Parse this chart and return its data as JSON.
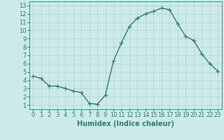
{
  "x": [
    0,
    1,
    2,
    3,
    4,
    5,
    6,
    7,
    8,
    9,
    10,
    11,
    12,
    13,
    14,
    15,
    16,
    17,
    18,
    19,
    20,
    21,
    22,
    23
  ],
  "y": [
    4.5,
    4.2,
    3.3,
    3.3,
    3.0,
    2.7,
    2.5,
    1.2,
    1.1,
    2.2,
    6.3,
    8.5,
    10.5,
    11.5,
    12.0,
    12.3,
    12.7,
    12.5,
    10.8,
    9.3,
    8.8,
    7.2,
    6.0,
    5.1
  ],
  "line_color": "#2e7d6e",
  "marker": "+",
  "marker_size": 4,
  "marker_linewidth": 0.8,
  "bg_color": "#cdeaea",
  "grid_color": "#b0cfcf",
  "xlabel": "Humidex (Indice chaleur)",
  "xlim": [
    -0.5,
    23.5
  ],
  "ylim": [
    0.5,
    13.5
  ],
  "xticks": [
    0,
    1,
    2,
    3,
    4,
    5,
    6,
    7,
    8,
    9,
    10,
    11,
    12,
    13,
    14,
    15,
    16,
    17,
    18,
    19,
    20,
    21,
    22,
    23
  ],
  "yticks": [
    1,
    2,
    3,
    4,
    5,
    6,
    7,
    8,
    9,
    10,
    11,
    12,
    13
  ],
  "xlabel_fontsize": 7,
  "tick_fontsize": 6,
  "linewidth": 1.0
}
